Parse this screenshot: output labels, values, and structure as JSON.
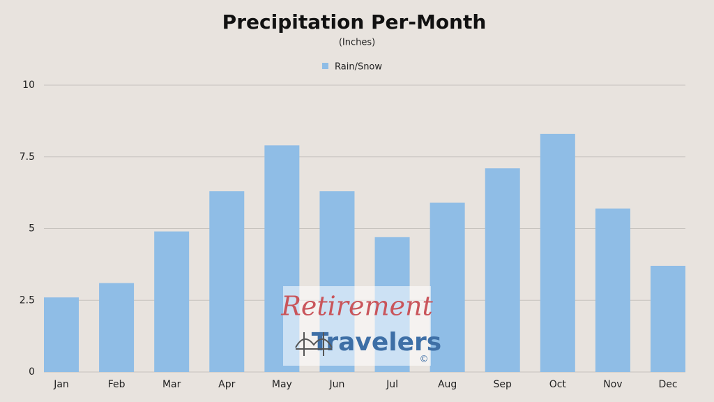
{
  "chart_data": {
    "type": "bar",
    "title": "Precipitation Per-Month",
    "subtitle": "(Inches)",
    "categories": [
      "Jan",
      "Feb",
      "Mar",
      "Apr",
      "May",
      "Jun",
      "Jul",
      "Aug",
      "Sep",
      "Oct",
      "Nov",
      "Dec"
    ],
    "series": [
      {
        "name": "Rain/Snow",
        "color": "#8fbde6",
        "values": [
          2.6,
          3.1,
          4.9,
          6.3,
          7.9,
          6.3,
          4.7,
          5.9,
          7.1,
          8.3,
          5.7,
          3.7
        ]
      }
    ],
    "ylim": [
      0,
      10
    ],
    "yticks": [
      0,
      2.5,
      5,
      7.5,
      10
    ],
    "grid": true,
    "legend": "top"
  },
  "watermark": {
    "line1": "Retirement",
    "line2": "Travelers",
    "mark": "©"
  }
}
